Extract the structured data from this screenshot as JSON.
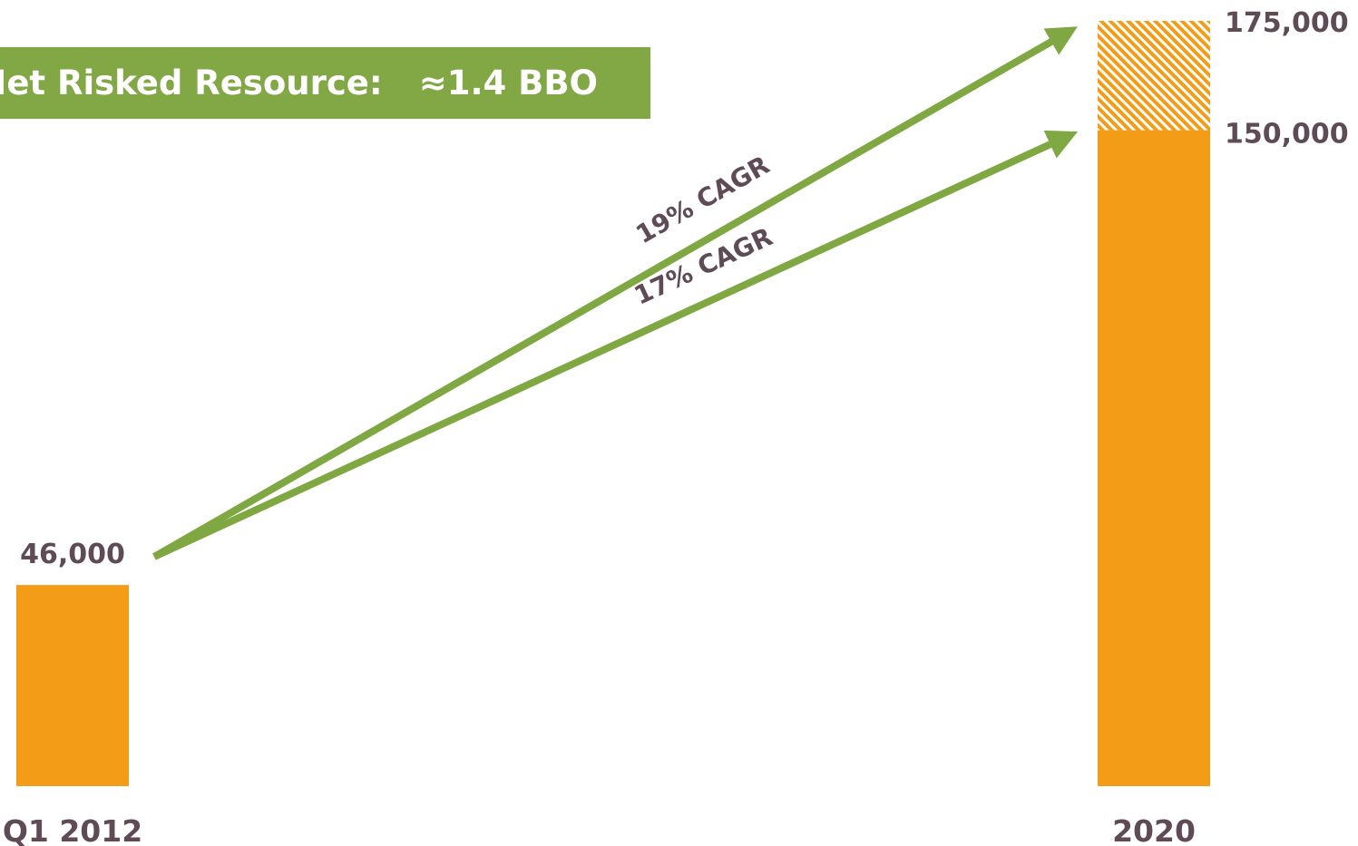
{
  "banner": {
    "label": "Net Risked Resource:",
    "value": "≈1.4 BBO"
  },
  "colors": {
    "bar": "#F39C18",
    "arrow": "#7FA842",
    "banner_bg": "#82A745",
    "text": "#5E4B56"
  },
  "chart_data": {
    "type": "bar",
    "categories": [
      "Q1 2012",
      "2020"
    ],
    "series": [
      {
        "values": [
          46000,
          150000
        ]
      },
      {
        "values": [
          0,
          25000
        ],
        "pattern": "hatched"
      }
    ],
    "data_labels": [
      "46,000",
      "150,000",
      "175,000"
    ],
    "annotations": [
      {
        "text": "19% CAGR",
        "from": [
          "Q1 2012",
          46000
        ],
        "to": [
          "2020",
          175000
        ]
      },
      {
        "text": "17% CAGR",
        "from": [
          "Q1 2012",
          46000
        ],
        "to": [
          "2020",
          150000
        ]
      }
    ],
    "ylim": [
      0,
      175000
    ],
    "grid": false,
    "legend": "none"
  }
}
